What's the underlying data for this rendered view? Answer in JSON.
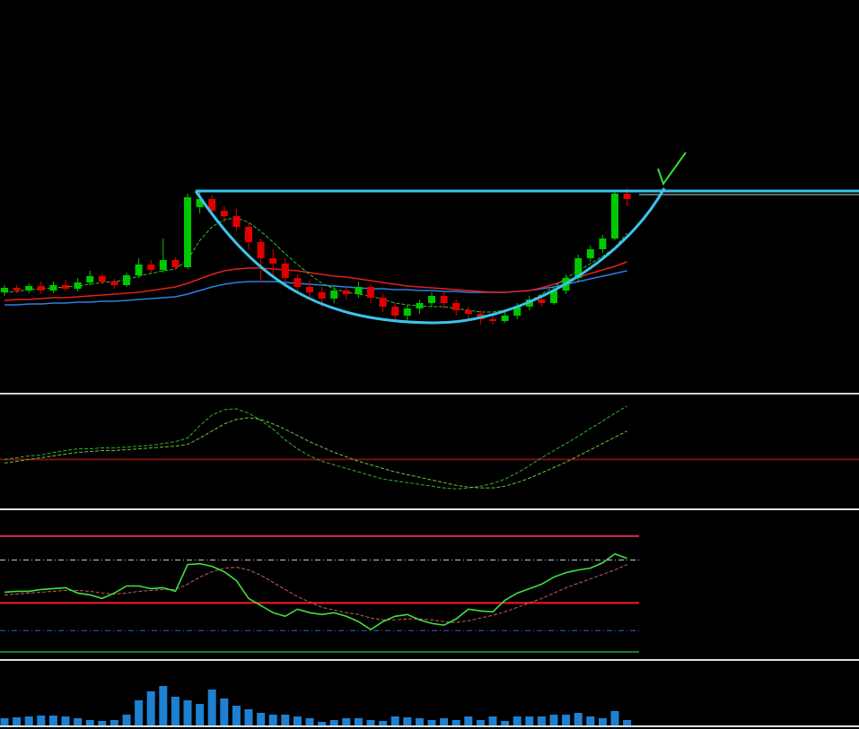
{
  "chart_data": [
    {
      "type": "candlestick",
      "ylim": [
        0,
        438
      ],
      "up_color": "#00c800",
      "down_color": "#e00000",
      "open": [
        112,
        117,
        114,
        119,
        114,
        120,
        116,
        123,
        130,
        124,
        120,
        131,
        143,
        137,
        148,
        140,
        207,
        216,
        203,
        197,
        185,
        168,
        150,
        144,
        128,
        118,
        112,
        105,
        114,
        110,
        118,
        106,
        96,
        86,
        94,
        100,
        108,
        100,
        92,
        88,
        82,
        80,
        86,
        96,
        104,
        100,
        114,
        128,
        150,
        160,
        172,
        222
      ],
      "high": [
        120,
        120,
        122,
        124,
        124,
        126,
        128,
        136,
        133,
        127,
        134,
        150,
        148,
        172,
        151,
        222,
        226,
        220,
        208,
        205,
        190,
        172,
        160,
        150,
        132,
        126,
        118,
        120,
        118,
        124,
        121,
        110,
        100,
        98,
        104,
        112,
        112,
        104,
        96,
        92,
        86,
        90,
        100,
        108,
        110,
        118,
        132,
        154,
        164,
        176,
        226,
        228
      ],
      "low": [
        108,
        111,
        111,
        110,
        111,
        113,
        113,
        120,
        121,
        116,
        118,
        128,
        133,
        134,
        137,
        138,
        200,
        198,
        190,
        180,
        160,
        124,
        130,
        118,
        112,
        104,
        96,
        100,
        104,
        106,
        100,
        90,
        78,
        80,
        88,
        96,
        94,
        86,
        82,
        76,
        76,
        78,
        82,
        92,
        96,
        98,
        110,
        124,
        146,
        156,
        170,
        208
      ],
      "close": [
        117,
        114,
        119,
        114,
        120,
        116,
        123,
        130,
        124,
        120,
        131,
        143,
        137,
        148,
        140,
        218,
        216,
        203,
        197,
        185,
        168,
        150,
        144,
        128,
        118,
        112,
        105,
        114,
        110,
        118,
        106,
        96,
        86,
        94,
        100,
        108,
        100,
        92,
        88,
        82,
        80,
        86,
        96,
        104,
        100,
        114,
        128,
        150,
        160,
        172,
        222,
        216
      ],
      "series": [
        {
          "color": "#2f7fe0",
          "dashed": false,
          "values": [
            98,
            98,
            99,
            99,
            100,
            100,
            101,
            101,
            102,
            102,
            103,
            104,
            105,
            106,
            107,
            110,
            114,
            118,
            121,
            123,
            124,
            124,
            124,
            123,
            122,
            121,
            120,
            119,
            118,
            117,
            116,
            116,
            115,
            115,
            114,
            114,
            113,
            113,
            112,
            112,
            112,
            112,
            113,
            114,
            116,
            118,
            121,
            124,
            127,
            130,
            133,
            136
          ]
        },
        {
          "color": "#e02020",
          "dashed": false,
          "values": [
            103,
            104,
            104,
            105,
            106,
            106,
            107,
            108,
            109,
            110,
            111,
            112,
            114,
            116,
            118,
            122,
            127,
            132,
            136,
            138,
            139,
            139,
            138,
            137,
            136,
            134,
            132,
            130,
            129,
            127,
            125,
            123,
            121,
            119,
            118,
            117,
            116,
            115,
            114,
            113,
            112,
            112,
            113,
            114,
            117,
            121,
            125,
            129,
            133,
            137,
            141,
            146
          ]
        },
        {
          "color": "#30c030",
          "dashed": true,
          "values": [
            112,
            113,
            115,
            116,
            117,
            118,
            119,
            121,
            123,
            124,
            126,
            130,
            133,
            136,
            138,
            148,
            170,
            185,
            193,
            195,
            190,
            180,
            168,
            155,
            143,
            132,
            122,
            116,
            112,
            110,
            108,
            104,
            100,
            98,
            97,
            96,
            96,
            94,
            92,
            90,
            90,
            92,
            96,
            102,
            110,
            118,
            128,
            136,
            144,
            152,
            162,
            178
          ]
        }
      ]
    },
    {
      "type": "line",
      "ylim": [
        -55,
        72
      ],
      "levels": [
        {
          "value": 0,
          "color": "#7a1010",
          "dashed": false
        }
      ],
      "series": [
        {
          "color": "#30b030",
          "dashed": true,
          "values": [
            0,
            2,
            4,
            5,
            8,
            10,
            12,
            12,
            13,
            13,
            14,
            15,
            16,
            18,
            20,
            24,
            38,
            50,
            56,
            57,
            52,
            44,
            34,
            22,
            12,
            4,
            -2,
            -6,
            -10,
            -14,
            -18,
            -22,
            -24,
            -26,
            -28,
            -30,
            -32,
            -33,
            -32,
            -30,
            -27,
            -22,
            -15,
            -7,
            2,
            10,
            18,
            26,
            35,
            43,
            52,
            60
          ]
        },
        {
          "color": "#70c040",
          "dashed": true,
          "values": [
            -4,
            -2,
            0,
            2,
            4,
            6,
            8,
            9,
            10,
            10,
            11,
            12,
            13,
            14,
            15,
            17,
            24,
            32,
            40,
            45,
            47,
            45,
            40,
            34,
            27,
            20,
            14,
            8,
            3,
            -2,
            -6,
            -10,
            -14,
            -17,
            -20,
            -23,
            -26,
            -29,
            -31,
            -32,
            -32,
            -30,
            -26,
            -21,
            -15,
            -9,
            -3,
            4,
            11,
            18,
            25,
            32
          ]
        }
      ]
    },
    {
      "type": "line",
      "ylim": [
        0,
        166
      ],
      "levels": [
        {
          "value": 138,
          "color": "#e0206a",
          "dashed": false
        },
        {
          "value": 111,
          "color": "#d0d0d0",
          "dashed": true
        },
        {
          "value": 63,
          "color": "#ff1a1a",
          "dashed": false
        },
        {
          "value": 32,
          "color": "#3060d0",
          "dashed": true
        },
        {
          "value": 8,
          "color": "#108040",
          "dashed": false
        }
      ],
      "series": [
        {
          "color": "#c06060",
          "dashed": true,
          "values": [
            72,
            73,
            74,
            75,
            76,
            77,
            77,
            76,
            74,
            73,
            74,
            76,
            77,
            78,
            78,
            84,
            92,
            98,
            102,
            103,
            100,
            94,
            86,
            78,
            70,
            64,
            58,
            55,
            52,
            50,
            46,
            44,
            44,
            45,
            45,
            44,
            42,
            41,
            43,
            46,
            49,
            53,
            58,
            63,
            68,
            74,
            80,
            85,
            90,
            95,
            100,
            106
          ]
        },
        {
          "color": "#40e040",
          "dashed": false,
          "values": [
            75,
            76,
            76,
            78,
            79,
            80,
            74,
            72,
            68,
            74,
            82,
            82,
            79,
            80,
            76,
            106,
            107,
            104,
            98,
            88,
            68,
            60,
            52,
            48,
            56,
            52,
            50,
            52,
            48,
            42,
            33,
            42,
            48,
            50,
            44,
            40,
            38,
            45,
            56,
            54,
            53,
            66,
            74,
            79,
            84,
            92,
            97,
            100,
            102,
            108,
            118,
            113
          ]
        }
      ]
    },
    {
      "type": "bar",
      "ylim": [
        0,
        71
      ],
      "color": "#1e80d0",
      "values": [
        8,
        9,
        10,
        11,
        11,
        10,
        8,
        6,
        5,
        6,
        12,
        28,
        38,
        44,
        32,
        28,
        24,
        40,
        30,
        22,
        18,
        14,
        12,
        12,
        10,
        8,
        4,
        6,
        8,
        8,
        6,
        5,
        10,
        9,
        8,
        6,
        8,
        6,
        10,
        6,
        10,
        5,
        10,
        10,
        10,
        12,
        12,
        14,
        10,
        8,
        16,
        6
      ]
    }
  ]
}
